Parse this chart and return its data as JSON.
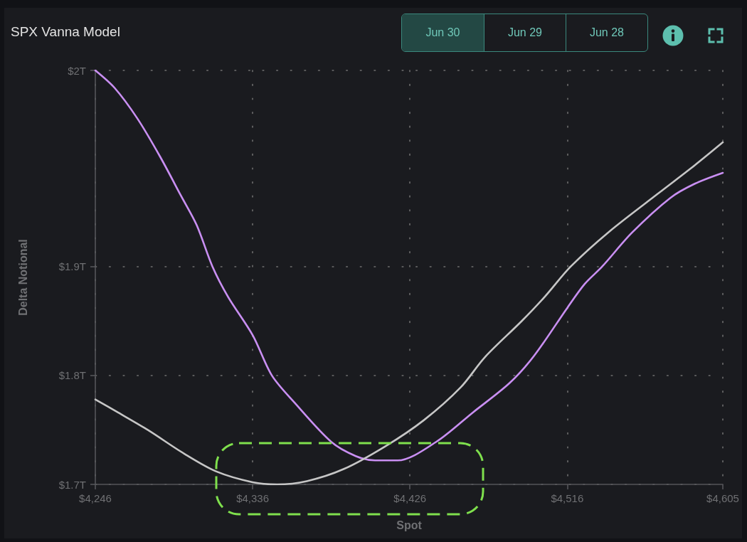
{
  "chart_data": {
    "type": "line",
    "title": "SPX Vanna Model",
    "xlabel": "Spot",
    "ylabel": "Delta Notional",
    "annotations": [
      "Jun 30",
      "Jun 29",
      "Jun 28"
    ],
    "xlim": [
      4246,
      4605
    ],
    "xticks": [
      {
        "value": 4246,
        "label": "$4,246"
      },
      {
        "value": 4336,
        "label": "$4,336"
      },
      {
        "value": 4426,
        "label": "$4,426"
      },
      {
        "value": 4516,
        "label": "$4,516"
      },
      {
        "value": 4605,
        "label": "$4,605"
      }
    ],
    "ylim": [
      1.7,
      2.08
    ],
    "yticks": [
      {
        "value": 1.7,
        "label": "$1.7T"
      },
      {
        "value": 1.8,
        "label": "$1.8T"
      },
      {
        "value": 1.9,
        "label": "$1.9T"
      },
      {
        "value": 2.08,
        "label": "$2T"
      }
    ],
    "grid": true,
    "marker": "none",
    "line_style": "solid",
    "series": [
      {
        "color": "#c98ff2",
        "x": [
          4246,
          4257,
          4270,
          4283,
          4295,
          4304,
          4313,
          4322,
          4336,
          4347,
          4360,
          4381,
          4395,
          4406,
          4419,
          4441,
          4462,
          4483,
          4497,
          4516,
          4526,
          4536,
          4553,
          4575,
          4589,
          4605
        ],
        "values": [
          2.08,
          2.064,
          2.036,
          2.001,
          1.965,
          1.938,
          1.9,
          1.872,
          1.837,
          1.8,
          1.775,
          1.739,
          1.726,
          1.722,
          1.722,
          1.739,
          1.766,
          1.793,
          1.818,
          1.862,
          1.884,
          1.9,
          1.931,
          1.963,
          1.976,
          1.986
        ]
      },
      {
        "color": "#c6c6c6",
        "x": [
          4246,
          4259,
          4276,
          4297,
          4315,
          4336,
          4350,
          4367,
          4388,
          4412,
          4434,
          4455,
          4469,
          4490,
          4503,
          4518,
          4540,
          4568,
          4589,
          4605
        ],
        "values": [
          1.778,
          1.766,
          1.75,
          1.728,
          1.712,
          1.702,
          1.7,
          1.703,
          1.714,
          1.735,
          1.759,
          1.789,
          1.817,
          1.85,
          1.872,
          1.9,
          1.932,
          1.967,
          1.993,
          2.014
        ]
      }
    ]
  }
}
